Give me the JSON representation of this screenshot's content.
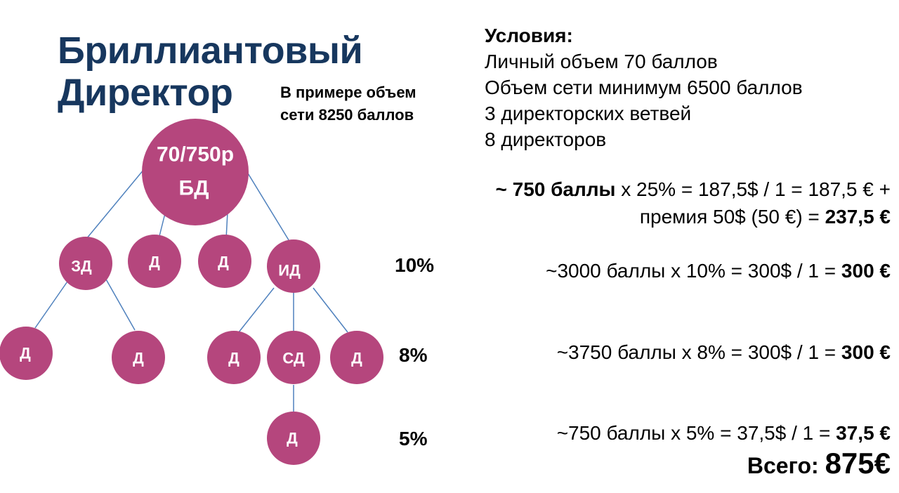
{
  "title": {
    "line1": "Бриллиантовый",
    "line2": "Директор"
  },
  "example": {
    "line1": "В примере объем",
    "line2": "сети 8250 баллов"
  },
  "conditions": {
    "title": "Условия:",
    "items": [
      "Личный объем 70 баллов",
      "Объем сети минимум 6500 баллов",
      "3 директорских ветвей",
      "8 директоров"
    ]
  },
  "colors": {
    "node": "#b5467d",
    "line": "#4f81bd",
    "title": "#17375e"
  },
  "tree": {
    "root": {
      "line1": "70/750р",
      "line2": "БД"
    },
    "level1": [
      "ЗД",
      "Д",
      "Д",
      "ИД"
    ],
    "level2_left": [
      "Д",
      "Д"
    ],
    "level2_right": [
      "Д",
      "СД",
      "Д"
    ],
    "level3": [
      "Д"
    ]
  },
  "percentages": [
    "10%",
    "8%",
    "5%"
  ],
  "calculations": {
    "row1": {
      "bold_prefix": "~ 750 баллы",
      "text": " х 25% = 187,5$ / 1 = 187,5 € +"
    },
    "row1b": {
      "text": "премия 50$ (50 €) = ",
      "bold": "237,5 €"
    },
    "row2": {
      "text": "~3000 баллы х 10% = 300$ / 1 = ",
      "bold": "300 €"
    },
    "row3": {
      "text": "~3750 баллы х 8% = 300$ / 1 = ",
      "bold": "300 €"
    },
    "row4": {
      "text": "~750 баллы х 5% = 37,5$ / 1 = ",
      "bold": "37,5 €"
    }
  },
  "total": {
    "label": "Всего: ",
    "value": "875€"
  }
}
